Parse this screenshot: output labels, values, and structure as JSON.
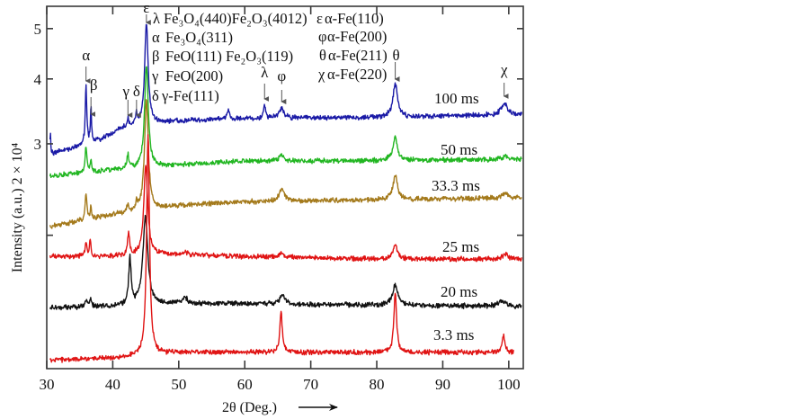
{
  "chart_data": {
    "type": "line",
    "title": "",
    "xlabel": "2θ (Deg.)",
    "ylabel": "Intensity (a.u.) 2 × 10⁴",
    "xlim": [
      30,
      102.2
    ],
    "ylim": [
      1.107,
      5.52
    ],
    "yscale": "log",
    "grid": false,
    "xticks": [
      30,
      40,
      50,
      60,
      70,
      80,
      90,
      100
    ],
    "xtick_labels": [
      "30",
      "40",
      "50",
      "60",
      "70",
      "80",
      "90",
      "100"
    ],
    "yticks": [
      2,
      3,
      4,
      5
    ],
    "ytick_labels": [
      "",
      "3",
      "4",
      "5"
    ],
    "series": [
      {
        "name": "100 ms",
        "color": "#1a1aa6",
        "x_range": [
          30.5,
          102
        ],
        "baseline": [
          [
            30.5,
            2.86
          ],
          [
            32,
            2.9
          ],
          [
            35,
            2.97
          ],
          [
            38,
            3.05
          ],
          [
            41,
            3.2
          ],
          [
            44,
            3.26
          ],
          [
            50,
            3.32
          ],
          [
            60,
            3.36
          ],
          [
            80,
            3.37
          ],
          [
            102,
            3.42
          ]
        ],
        "peaks": [
          {
            "x": 30.55,
            "value": 3.15,
            "fwhm": 0.15
          },
          {
            "x": 35.95,
            "value": 3.9,
            "fwhm": 0.25
          },
          {
            "x": 36.7,
            "value": 3.52,
            "fwhm": 0.2
          },
          {
            "x": 42.3,
            "value": 3.35,
            "fwhm": 0.35
          },
          {
            "x": 43.6,
            "value": 3.41,
            "fwhm": 0.35
          },
          {
            "x": 45.1,
            "value": 5.14,
            "fwhm": 0.55
          },
          {
            "x": 57.5,
            "value": 3.48,
            "fwhm": 0.5
          },
          {
            "x": 63.0,
            "value": 3.56,
            "fwhm": 0.35
          },
          {
            "x": 65.6,
            "value": 3.52,
            "fwhm": 0.8
          },
          {
            "x": 82.8,
            "value": 3.92,
            "fwhm": 0.8
          },
          {
            "x": 99.3,
            "value": 3.6,
            "fwhm": 1.0
          }
        ]
      },
      {
        "name": "50 ms",
        "color": "#22b622",
        "x_range": [
          30.5,
          102
        ],
        "baseline": [
          [
            30.5,
            2.6
          ],
          [
            40,
            2.67
          ],
          [
            50,
            2.73
          ],
          [
            60,
            2.78
          ],
          [
            70,
            2.78
          ],
          [
            102,
            2.8
          ]
        ],
        "peaks": [
          {
            "x": 35.95,
            "value": 2.97,
            "fwhm": 0.3
          },
          {
            "x": 36.7,
            "value": 2.8,
            "fwhm": 0.2
          },
          {
            "x": 42.3,
            "value": 2.85,
            "fwhm": 0.35
          },
          {
            "x": 45.1,
            "value": 4.24,
            "fwhm": 0.6
          },
          {
            "x": 65.6,
            "value": 2.86,
            "fwhm": 0.8
          },
          {
            "x": 82.8,
            "value": 3.08,
            "fwhm": 0.8
          },
          {
            "x": 99.5,
            "value": 2.84,
            "fwhm": 1.0
          }
        ]
      },
      {
        "name": "33.3 ms",
        "color": "#a47a1c",
        "x_range": [
          30.5,
          102
        ],
        "baseline": [
          [
            30.5,
            2.08
          ],
          [
            36,
            2.14
          ],
          [
            41,
            2.2
          ],
          [
            50,
            2.28
          ],
          [
            60,
            2.32
          ],
          [
            80,
            2.34
          ],
          [
            102,
            2.36
          ]
        ],
        "peaks": [
          {
            "x": 35.95,
            "value": 2.41,
            "fwhm": 0.3
          },
          {
            "x": 36.7,
            "value": 2.27,
            "fwhm": 0.2
          },
          {
            "x": 42.3,
            "value": 2.28,
            "fwhm": 0.35
          },
          {
            "x": 43.6,
            "value": 2.3,
            "fwhm": 0.35
          },
          {
            "x": 45.1,
            "value": 3.66,
            "fwhm": 0.6
          },
          {
            "x": 65.6,
            "value": 2.46,
            "fwhm": 0.9
          },
          {
            "x": 82.8,
            "value": 2.61,
            "fwhm": 0.8
          },
          {
            "x": 99.5,
            "value": 2.41,
            "fwhm": 1.0
          }
        ]
      },
      {
        "name": "25 ms",
        "color": "#e01414",
        "x_range": [
          30.5,
          102
        ],
        "baseline": [
          [
            30.5,
            1.82
          ],
          [
            40,
            1.82
          ],
          [
            47,
            1.84
          ],
          [
            60,
            1.82
          ],
          [
            80,
            1.8
          ],
          [
            102,
            1.8
          ]
        ],
        "peaks": [
          {
            "x": 35.95,
            "value": 1.95,
            "fwhm": 0.25
          },
          {
            "x": 36.6,
            "value": 1.97,
            "fwhm": 0.25
          },
          {
            "x": 42.4,
            "value": 2.03,
            "fwhm": 0.35
          },
          {
            "x": 45.0,
            "value": 2.71,
            "fwhm": 0.65
          },
          {
            "x": 51.0,
            "value": 1.86,
            "fwhm": 0.5
          },
          {
            "x": 65.6,
            "value": 1.86,
            "fwhm": 0.8
          },
          {
            "x": 82.8,
            "value": 1.91,
            "fwhm": 0.8
          },
          {
            "x": 99.5,
            "value": 1.84,
            "fwhm": 1.0
          }
        ]
      },
      {
        "name": "20 ms",
        "color": "#111111",
        "x_range": [
          30.5,
          102
        ],
        "baseline": [
          [
            30.5,
            1.45
          ],
          [
            40,
            1.46
          ],
          [
            50,
            1.48
          ],
          [
            70,
            1.47
          ],
          [
            102,
            1.46
          ]
        ],
        "peaks": [
          {
            "x": 35.95,
            "value": 1.5,
            "fwhm": 0.3
          },
          {
            "x": 36.6,
            "value": 1.51,
            "fwhm": 0.3
          },
          {
            "x": 42.6,
            "value": 1.81,
            "fwhm": 0.4
          },
          {
            "x": 44.95,
            "value": 2.18,
            "fwhm": 0.8
          },
          {
            "x": 51.0,
            "value": 1.52,
            "fwhm": 0.6
          },
          {
            "x": 65.7,
            "value": 1.54,
            "fwhm": 0.9
          },
          {
            "x": 82.8,
            "value": 1.6,
            "fwhm": 1.0
          },
          {
            "x": 99.0,
            "value": 1.5,
            "fwhm": 1.0
          }
        ]
      },
      {
        "name": "3.3 ms",
        "color": "#e01414",
        "x_range": [
          30.5,
          100.8
        ],
        "baseline": [
          [
            30.5,
            1.15
          ],
          [
            40,
            1.16
          ],
          [
            50,
            1.19
          ],
          [
            70,
            1.19
          ],
          [
            100.8,
            1.19
          ]
        ],
        "peaks": [
          {
            "x": 45.35,
            "value": 3.16,
            "fwhm": 0.4
          },
          {
            "x": 65.5,
            "value": 1.42,
            "fwhm": 0.45
          },
          {
            "x": 82.8,
            "value": 1.55,
            "fwhm": 0.45
          },
          {
            "x": 99.2,
            "value": 1.29,
            "fwhm": 0.45
          }
        ]
      }
    ],
    "peak_markers": [
      {
        "symbol": "α",
        "x": 35.95
      },
      {
        "symbol": "β",
        "x": 36.7
      },
      {
        "symbol": "γ",
        "x": 42.3
      },
      {
        "symbol": "δ",
        "x": 43.6
      },
      {
        "symbol": "ε",
        "x": 45.1
      },
      {
        "symbol": "λ",
        "x": 63.0
      },
      {
        "symbol": "φ",
        "x": 65.6
      },
      {
        "symbol": "θ",
        "x": 82.8
      },
      {
        "symbol": "χ",
        "x": 99.3
      }
    ],
    "legend": {
      "placement": "top-center",
      "entries": [
        {
          "symbol": "λ",
          "phase": "Fe₃O₄(440)Fe₂O₃(4012)"
        },
        {
          "symbol": "α",
          "phase": "Fe₃O₄(311)"
        },
        {
          "symbol": "β",
          "phase": "FeO(111) Fe₂O₃(119)"
        },
        {
          "symbol": "γ",
          "phase": "FeO(200)"
        },
        {
          "symbol": "δ",
          "phase": "γ-Fe(111)"
        },
        {
          "symbol": "ε",
          "phase": "α-Fe(110)"
        },
        {
          "symbol": "φ",
          "phase": "α-Fe(200)"
        },
        {
          "symbol": "θ",
          "phase": "α-Fe(211)"
        },
        {
          "symbol": "χ",
          "phase": "α-Fe(220)"
        }
      ]
    }
  }
}
